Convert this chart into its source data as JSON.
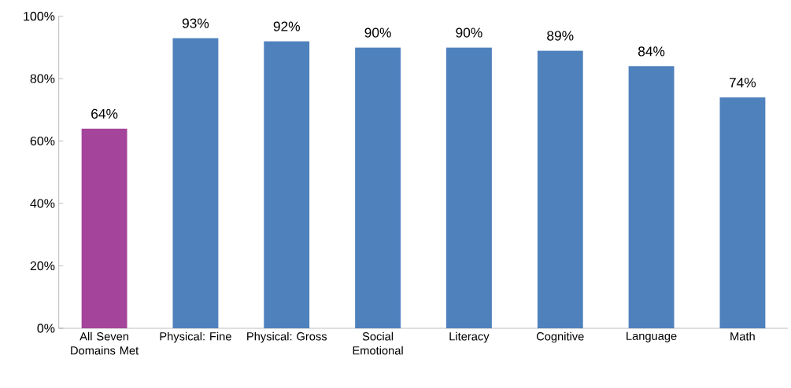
{
  "chart_data": {
    "type": "bar",
    "categories": [
      "All Seven Domains Met",
      "Physical: Fine",
      "Physical: Gross",
      "Social Emotional",
      "Literacy",
      "Cognitive",
      "Language",
      "Math"
    ],
    "values": [
      64,
      93,
      92,
      90,
      90,
      89,
      84,
      74
    ],
    "value_labels": [
      "64%",
      "93%",
      "92%",
      "90%",
      "90%",
      "89%",
      "84%",
      "74%"
    ],
    "colors": [
      "#a4449a",
      "#4f81bd",
      "#4f81bd",
      "#4f81bd",
      "#4f81bd",
      "#4f81bd",
      "#4f81bd",
      "#4f81bd"
    ],
    "ylim": [
      0,
      100
    ],
    "yticks": [
      {
        "value": 0,
        "label": "0%"
      },
      {
        "value": 20,
        "label": "20%"
      },
      {
        "value": 40,
        "label": "40%"
      },
      {
        "value": 60,
        "label": "60%"
      },
      {
        "value": 80,
        "label": "80%"
      },
      {
        "value": 100,
        "label": "100%"
      }
    ],
    "grid": false
  }
}
